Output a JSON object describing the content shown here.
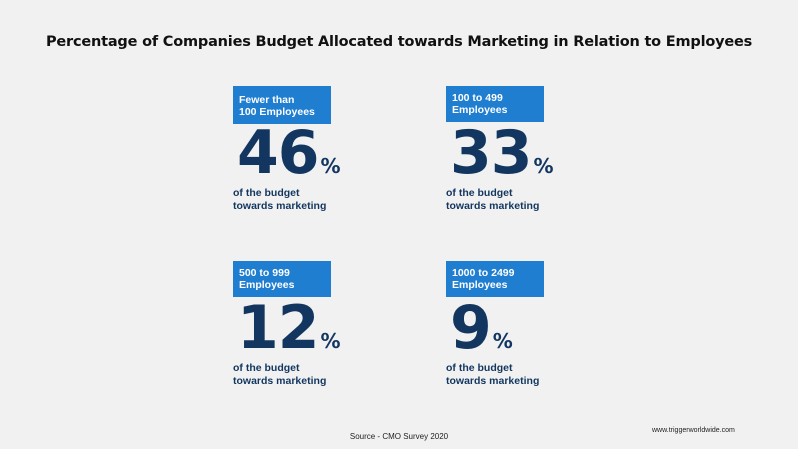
{
  "title": "Percentage of Companies Budget Allocated towards Marketing in Relation to Employees",
  "stats": [
    {
      "label": "Fewer than\n100 Employees",
      "value": "46",
      "unit": "%",
      "caption": "of the budget\ntowards marketing"
    },
    {
      "label": "100 to 499\nEmployees",
      "value": "33",
      "unit": "%",
      "caption": "of the budget\ntowards marketing"
    },
    {
      "label": "500 to 999\nEmployees",
      "value": "12",
      "unit": "%",
      "caption": "of the budget\ntowards marketing"
    },
    {
      "label": "1000 to 2499\nEmployees",
      "value": "9",
      "unit": "%",
      "caption": "of the budget\ntowards marketing"
    }
  ],
  "source": "Source - CMO Survey 2020",
  "website": "www.triggerworldwide.com",
  "colors": {
    "badge": "#1f7ed0",
    "number": "#12365f",
    "background": "#f1f1f1"
  },
  "chart_data": {
    "type": "table",
    "title": "Percentage of Companies Budget Allocated towards Marketing in Relation to Employees",
    "categories": [
      "Fewer than 100 Employees",
      "100 to 499 Employees",
      "500 to 999 Employees",
      "1000 to 2499 Employees"
    ],
    "values": [
      46,
      33,
      12,
      9
    ],
    "unit": "%"
  }
}
